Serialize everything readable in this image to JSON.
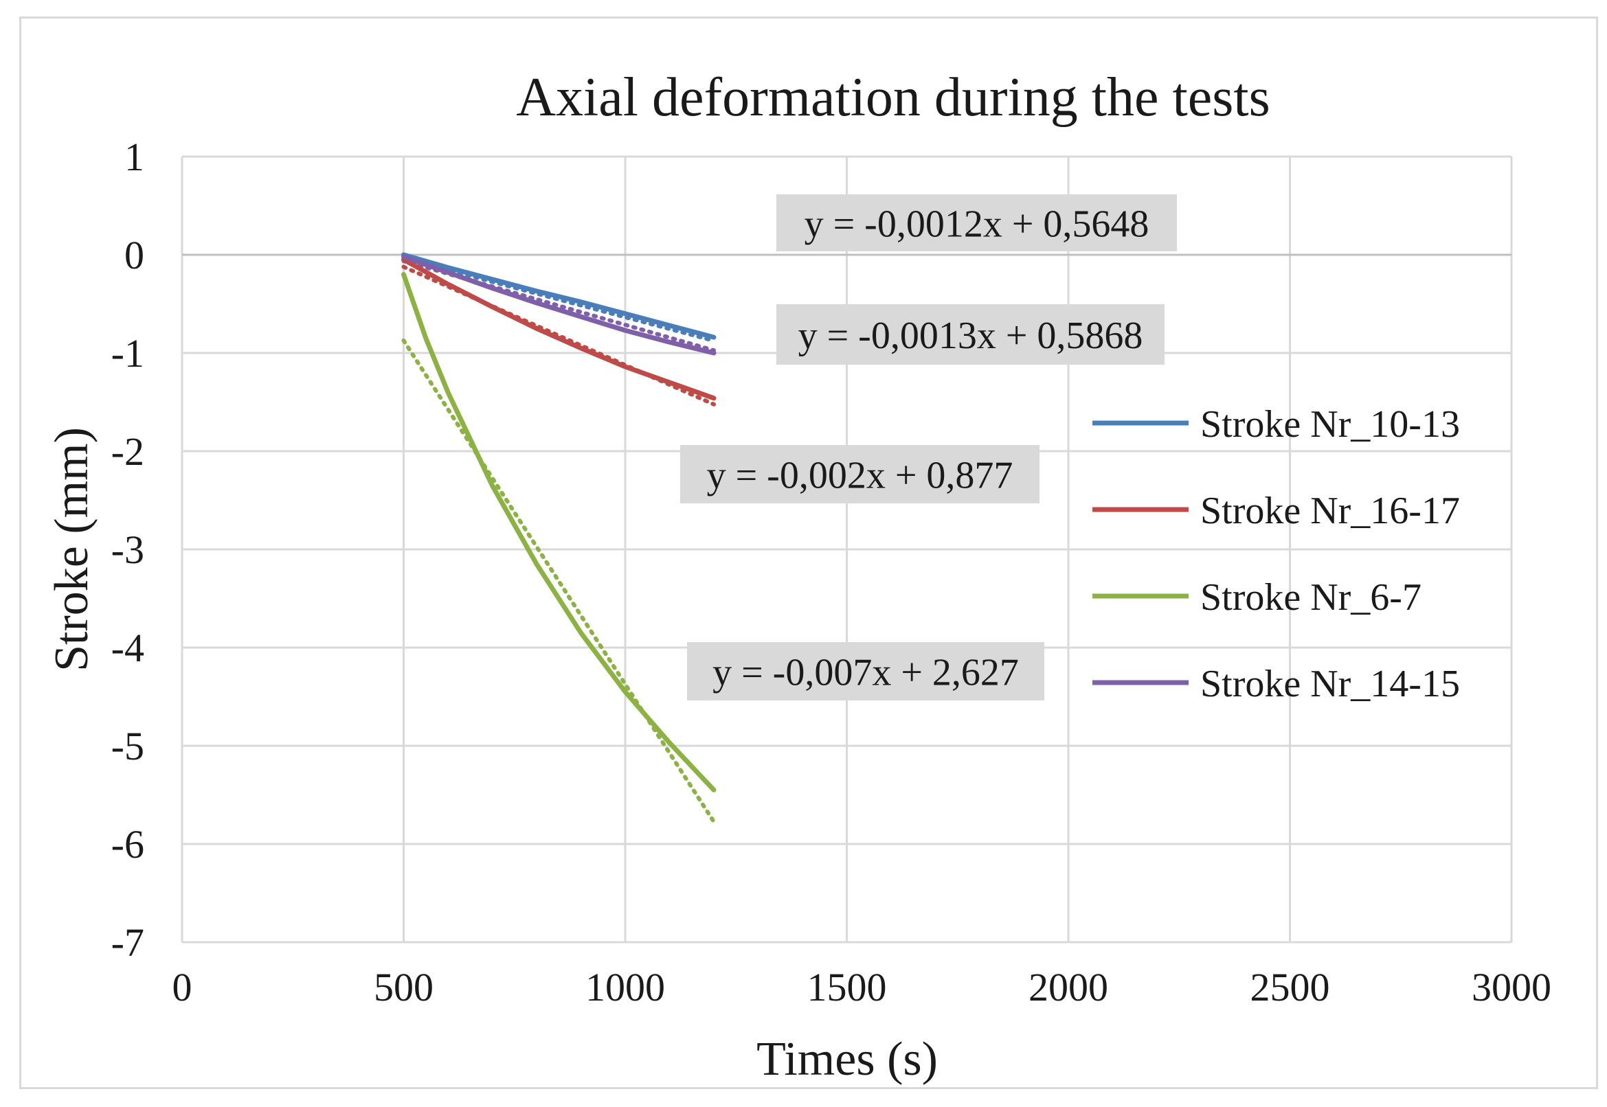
{
  "chart_data": {
    "type": "line",
    "title": "Axial deformation during the tests",
    "xlabel": "Times (s)",
    "ylabel": "Stroke (mm)",
    "xlim": [
      0,
      3000
    ],
    "ylim": [
      -7,
      1
    ],
    "xticks": [
      0,
      500,
      1000,
      1500,
      2000,
      2500,
      3000
    ],
    "yticks": [
      1,
      0,
      -1,
      -2,
      -3,
      -4,
      -5,
      -6,
      -7
    ],
    "grid": true,
    "legend_position": "right",
    "series": [
      {
        "name": "Stroke Nr_10-13",
        "color": "#4a7ebb",
        "x": [
          500,
          600,
          700,
          800,
          900,
          1000,
          1100,
          1200
        ],
        "y": [
          0,
          -0.13,
          -0.25,
          -0.37,
          -0.48,
          -0.6,
          -0.72,
          -0.84
        ]
      },
      {
        "name": "Stroke Nr_16-17",
        "color": "#be4b48",
        "x": [
          500,
          600,
          700,
          800,
          900,
          1000,
          1100,
          1200
        ],
        "y": [
          -0.05,
          -0.3,
          -0.53,
          -0.75,
          -0.95,
          -1.14,
          -1.3,
          -1.46
        ]
      },
      {
        "name": "Stroke Nr_6-7",
        "color": "#8db244",
        "x": [
          500,
          550,
          600,
          700,
          800,
          900,
          1000,
          1100,
          1200
        ],
        "y": [
          -0.2,
          -0.85,
          -1.4,
          -2.35,
          -3.15,
          -3.85,
          -4.45,
          -4.97,
          -5.45
        ]
      },
      {
        "name": "Stroke Nr_14-15",
        "color": "#7f5fa9",
        "x": [
          500,
          600,
          700,
          800,
          900,
          1000,
          1100,
          1200
        ],
        "y": [
          -0.02,
          -0.18,
          -0.34,
          -0.49,
          -0.63,
          -0.77,
          -0.89,
          -1.0
        ]
      }
    ],
    "trendlines": [
      {
        "series": "Stroke Nr_10-13",
        "slope": -0.0012,
        "intercept": 0.5648,
        "x_range": [
          500,
          1200
        ]
      },
      {
        "series": "Stroke Nr_16-17",
        "slope": -0.002,
        "intercept": 0.877,
        "x_range": [
          500,
          1200
        ]
      },
      {
        "series": "Stroke Nr_6-7",
        "slope": -0.007,
        "intercept": 2.627,
        "x_range": [
          500,
          1200
        ]
      },
      {
        "series": "Stroke Nr_14-15",
        "slope": -0.0013,
        "intercept": 0.5868,
        "x_range": [
          500,
          1200
        ]
      }
    ],
    "annotations": [
      "y = -0,0012x + 0,5648",
      "y = -0,0013x + 0,5868",
      "y = -0,002x + 0,877",
      "y = -0,007x + 2,627"
    ]
  }
}
